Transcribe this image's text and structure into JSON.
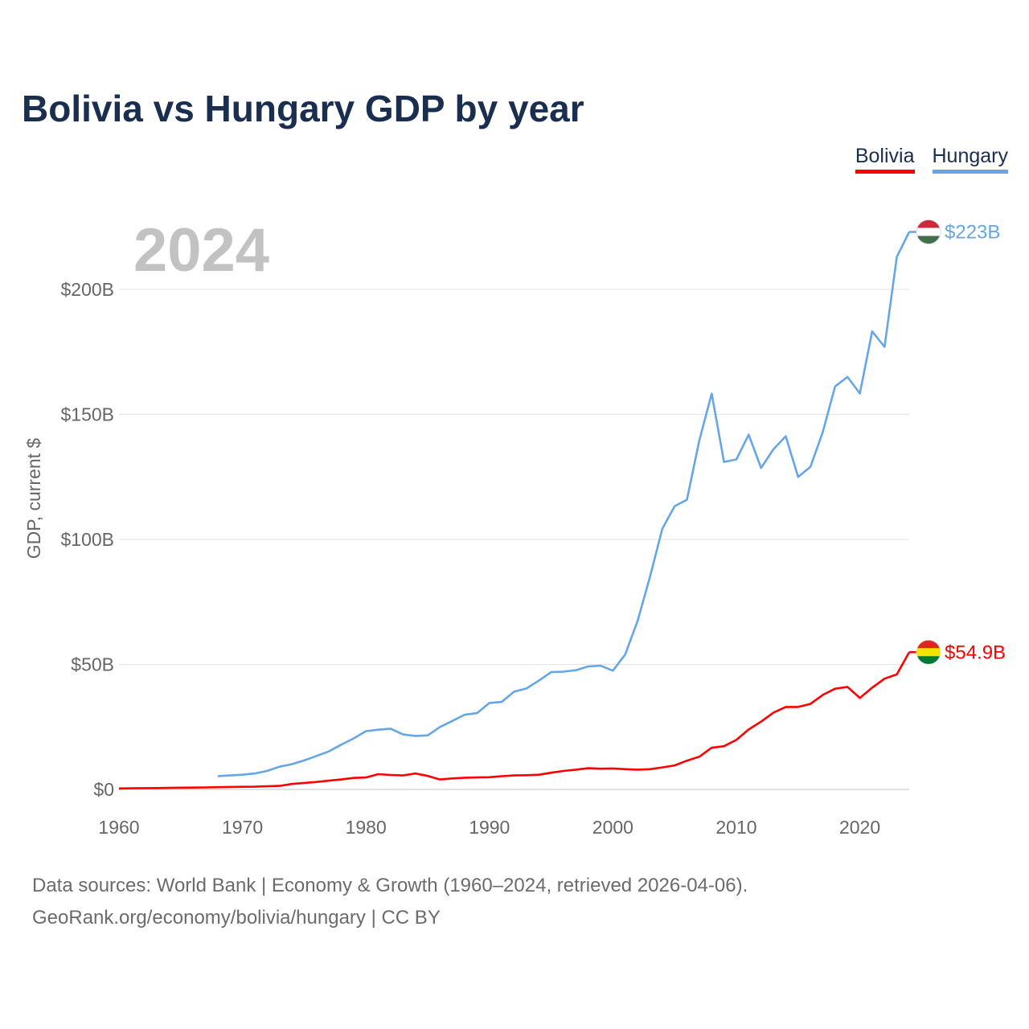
{
  "title": "Bolivia vs Hungary GDP by year",
  "year_stamp": "2024",
  "legend": [
    {
      "label": "Bolivia",
      "color": "#ff0000"
    },
    {
      "label": "Hungary",
      "color": "#64a6e6"
    }
  ],
  "footer": {
    "line1": "Data sources: World Bank | Economy & Growth (1960–2024, retrieved 2026-04-06).",
    "line2": "GeoRank.org/economy/bolivia/hungary | CC BY"
  },
  "chart_data": {
    "type": "line",
    "title": "Bolivia vs Hungary GDP by year",
    "xlabel": "",
    "ylabel": "GDP, current $",
    "xlim": [
      1960,
      2024
    ],
    "ylim": [
      0,
      200
    ],
    "x_ticks": [
      1960,
      1970,
      1980,
      1990,
      2000,
      2010,
      2020
    ],
    "y_ticks": [
      {
        "value": 0,
        "label": "$0"
      },
      {
        "value": 50,
        "label": "$50B"
      },
      {
        "value": 100,
        "label": "$100B"
      },
      {
        "value": 150,
        "label": "$150B"
      },
      {
        "value": 200,
        "label": "$200B"
      }
    ],
    "grid": true,
    "series": [
      {
        "name": "Bolivia",
        "color": "#ff0000",
        "end_label": "$54.9B",
        "flag_colors": [
          "#da291c",
          "#f4e400",
          "#007a33"
        ],
        "x": [
          1960,
          1961,
          1962,
          1963,
          1964,
          1965,
          1966,
          1967,
          1968,
          1969,
          1970,
          1971,
          1972,
          1973,
          1974,
          1975,
          1976,
          1977,
          1978,
          1979,
          1980,
          1981,
          1982,
          1983,
          1984,
          1985,
          1986,
          1987,
          1988,
          1989,
          1990,
          1991,
          1992,
          1993,
          1994,
          1995,
          1996,
          1997,
          1998,
          1999,
          2000,
          2001,
          2002,
          2003,
          2004,
          2005,
          2006,
          2007,
          2008,
          2009,
          2010,
          2011,
          2012,
          2013,
          2014,
          2015,
          2016,
          2017,
          2018,
          2019,
          2020,
          2021,
          2022,
          2023,
          2024
        ],
        "values": [
          0.4,
          0.45,
          0.5,
          0.55,
          0.6,
          0.7,
          0.75,
          0.8,
          0.9,
          1.0,
          1.05,
          1.1,
          1.3,
          1.4,
          2.2,
          2.6,
          3.0,
          3.5,
          4.0,
          4.6,
          4.8,
          6.1,
          5.8,
          5.6,
          6.4,
          5.4,
          4.0,
          4.4,
          4.7,
          4.8,
          4.9,
          5.3,
          5.6,
          5.7,
          5.9,
          6.7,
          7.4,
          7.9,
          8.5,
          8.3,
          8.4,
          8.1,
          7.9,
          8.1,
          8.8,
          9.6,
          11.5,
          13.1,
          16.7,
          17.3,
          19.8,
          24.0,
          27.1,
          30.7,
          33.0,
          33.0,
          34.2,
          37.8,
          40.3,
          41.0,
          36.6,
          40.7,
          44.3,
          46.0,
          54.9
        ]
      },
      {
        "name": "Hungary",
        "color": "#64a6e6",
        "end_label": "$223B",
        "flag_colors": [
          "#cd2a3e",
          "#ffffff",
          "#436f4d"
        ],
        "x": [
          1968,
          1969,
          1970,
          1971,
          1972,
          1973,
          1974,
          1975,
          1976,
          1977,
          1978,
          1979,
          1980,
          1981,
          1982,
          1983,
          1984,
          1985,
          1986,
          1987,
          1988,
          1989,
          1990,
          1991,
          1992,
          1993,
          1994,
          1995,
          1996,
          1997,
          1998,
          1999,
          2000,
          2001,
          2002,
          2003,
          2004,
          2005,
          2006,
          2007,
          2008,
          2009,
          2010,
          2011,
          2012,
          2013,
          2014,
          2015,
          2016,
          2017,
          2018,
          2019,
          2020,
          2021,
          2022,
          2023,
          2024
        ],
        "values": [
          5.3,
          5.6,
          5.9,
          6.4,
          7.4,
          9.1,
          10.1,
          11.6,
          13.4,
          15.2,
          17.9,
          20.4,
          23.3,
          23.9,
          24.3,
          22.0,
          21.4,
          21.6,
          25.0,
          27.4,
          29.9,
          30.5,
          34.6,
          35.0,
          39.1,
          40.4,
          43.5,
          46.9,
          47.1,
          47.7,
          49.2,
          49.5,
          47.5,
          54.0,
          67.4,
          85.0,
          104.2,
          113.3,
          115.9,
          139.6,
          158.3,
          131.0,
          132.0,
          141.9,
          128.6,
          136.0,
          141.3,
          125.0,
          129.0,
          143.0,
          161.2,
          165.0,
          158.4,
          183.2,
          177.0,
          213.0,
          223.0
        ]
      }
    ]
  }
}
